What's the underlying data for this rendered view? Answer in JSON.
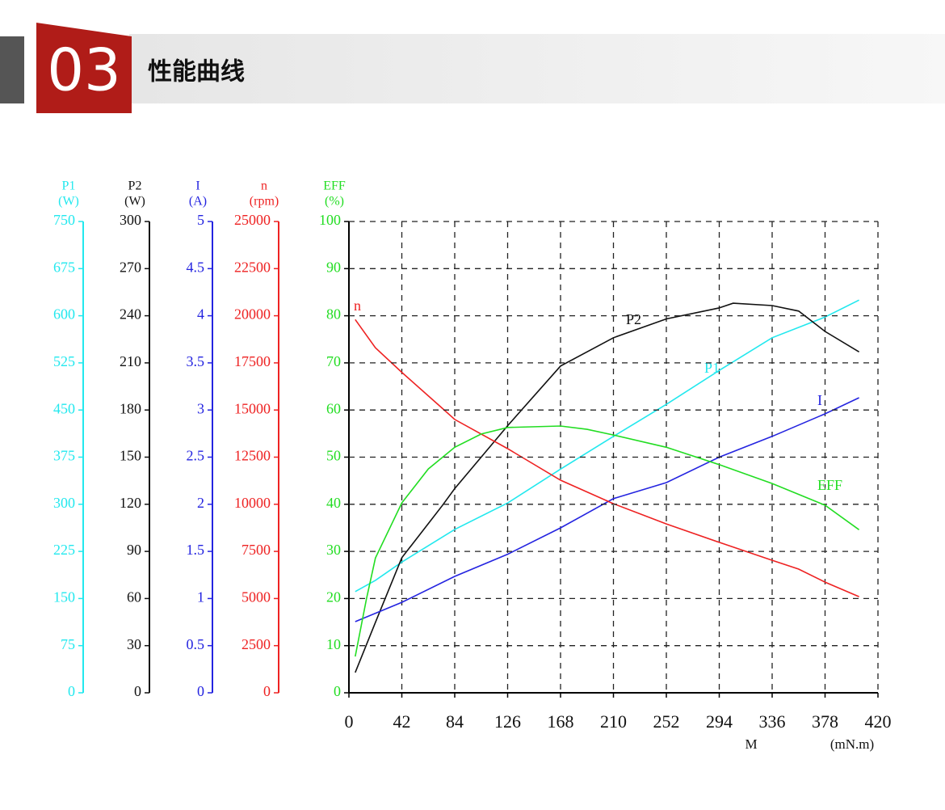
{
  "header": {
    "number": "03",
    "title": "性能曲线"
  },
  "chart_data": {
    "type": "line",
    "grid": true,
    "x_label": "M",
    "x_unit": "(mN.m)",
    "xlim": [
      0,
      420
    ],
    "xticks": [
      0,
      42,
      84,
      126,
      168,
      210,
      252,
      294,
      336,
      378,
      420
    ],
    "series": [
      {
        "name": "P1",
        "unit": "(W)",
        "color": "#22e8ee",
        "ylim": [
          0,
          750
        ],
        "yticks": [
          0,
          75,
          150,
          225,
          300,
          375,
          450,
          525,
          600,
          675,
          750
        ],
        "x": [
          5,
          21,
          42,
          84,
          126,
          168,
          210,
          252,
          294,
          336,
          378,
          405
        ],
        "values": [
          161,
          179,
          208,
          260,
          302,
          356,
          408,
          459,
          513,
          565,
          598,
          625
        ]
      },
      {
        "name": "P2",
        "unit": "(W)",
        "color": "#111111",
        "ylim": [
          0,
          300
        ],
        "yticks": [
          0,
          30,
          60,
          90,
          120,
          150,
          180,
          210,
          240,
          270,
          300
        ],
        "x": [
          5,
          21,
          42,
          74,
          84,
          126,
          168,
          210,
          252,
          294,
          305,
          336,
          357,
          378,
          405
        ],
        "values": [
          12.9,
          44.8,
          86,
          119,
          130,
          170,
          208,
          226,
          238,
          245,
          248,
          246.5,
          243,
          230,
          217
        ]
      },
      {
        "name": "I",
        "unit": "(A)",
        "color": "#2424e0",
        "ylim": [
          0,
          5
        ],
        "yticks": [
          0,
          0.5,
          1,
          1.5,
          2,
          2.5,
          3,
          3.5,
          4,
          4.5,
          5
        ],
        "x": [
          5,
          42,
          84,
          126,
          168,
          210,
          252,
          294,
          336,
          378,
          405
        ],
        "values": [
          0.755,
          0.96,
          1.235,
          1.47,
          1.75,
          2.06,
          2.23,
          2.5,
          2.72,
          2.96,
          3.13
        ]
      },
      {
        "name": "n",
        "unit": "(rpm)",
        "color": "#ee2222",
        "ylim": [
          0,
          25000
        ],
        "yticks": [
          0,
          2500,
          5000,
          7500,
          10000,
          12500,
          15000,
          17500,
          20000,
          22500,
          25000
        ],
        "x": [
          5,
          21,
          42,
          74,
          84,
          126,
          168,
          210,
          252,
          294,
          336,
          357,
          378,
          405
        ],
        "values": [
          19800,
          18300,
          17000,
          15100,
          14500,
          12950,
          11280,
          10030,
          8960,
          7980,
          7030,
          6560,
          5870,
          5100
        ]
      },
      {
        "name": "EFF",
        "unit": "(%)",
        "color": "#22dd22",
        "ylim": [
          0,
          100
        ],
        "yticks": [
          0,
          10,
          20,
          30,
          40,
          50,
          60,
          70,
          80,
          90,
          100
        ],
        "x": [
          5,
          14,
          21,
          42,
          63,
          84,
          105,
          126,
          168,
          189,
          210,
          252,
          294,
          336,
          378,
          405
        ],
        "values": [
          7.7,
          20,
          28.6,
          40.3,
          47.5,
          52.1,
          54.9,
          56.3,
          56.6,
          55.9,
          54.7,
          52.1,
          48.4,
          44.4,
          39.8,
          34.6
        ]
      }
    ]
  }
}
